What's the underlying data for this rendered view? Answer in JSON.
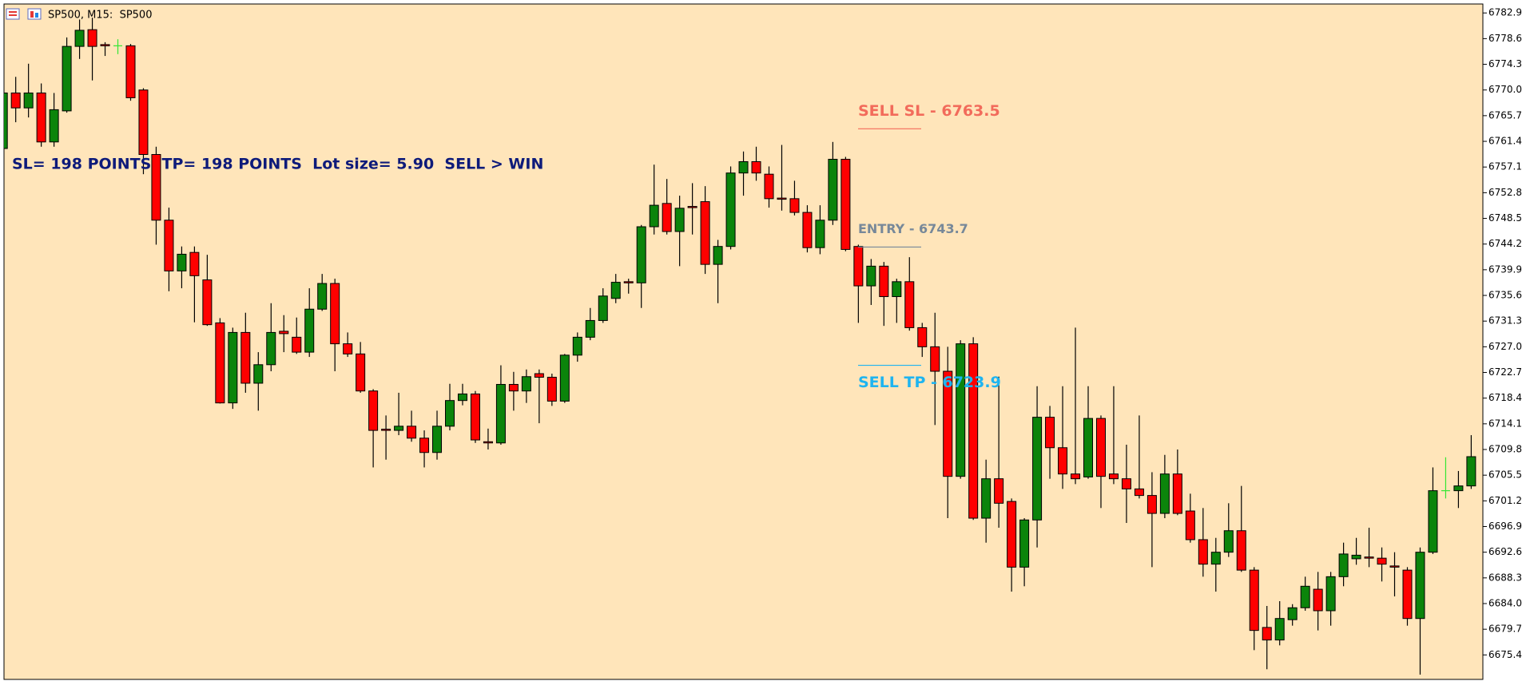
{
  "chart_data": {
    "type": "candlestick",
    "title": "SP500, M15:  SP500",
    "annotations": [
      "SL= 198 POINTS  TP= 198 POINTS  Lot size= 5.90  SELL > WIN"
    ],
    "levels": [
      {
        "label": "SELL SL - 6763.5",
        "value": 6763.5,
        "color": "#f26b5b"
      },
      {
        "label": "ENTRY - 6743.7",
        "value": 6743.7,
        "color": "#778899"
      },
      {
        "label": "SELL TP - 6723.9",
        "value": 6723.9,
        "color": "#1eb4f0"
      }
    ],
    "up_color": "#0b840b",
    "down_color": "#ff0000",
    "doji_color": "#33e633",
    "ylim": [
      6671.3,
      6784.4
    ],
    "yticks": [
      6782.9,
      6778.6,
      6774.3,
      {
        "value": 6770,
        "label": "6770.0"
      },
      6765.7,
      6761.4,
      6757.1,
      6752.8,
      6748.5,
      6744.2,
      6739.9,
      6735.6,
      6731.3,
      {
        "value": 6727,
        "label": "6727.0"
      },
      6722.7,
      6718.4,
      6714.1,
      6709.8,
      6705.5,
      6701.2,
      6696.9,
      6692.6,
      6688.3,
      {
        "value": 6684,
        "label": "6684.0"
      },
      6679.7,
      6675.4
    ],
    "open": [
      6760.2,
      6769.5,
      6767.0,
      6769.5,
      6761.3,
      6766.5,
      6777.3,
      6780.1,
      6777.6,
      6777.4,
      6777.4,
      6770.0,
      6759.2,
      6748.2,
      6739.7,
      6742.8,
      6738.2,
      6731.0,
      6717.6,
      6729.4,
      6720.9,
      6724.0,
      6729.6,
      6728.6,
      6726.1,
      6733.3,
      6737.6,
      6727.5,
      6725.8,
      6719.6,
      6713.2,
      6713.0,
      6713.7,
      6711.7,
      6709.3,
      6713.7,
      6718.0,
      6719.1,
      6711.1,
      6710.9,
      6720.7,
      6719.6,
      6722.5,
      6721.9,
      6717.9,
      6725.6,
      6728.6,
      6731.4,
      6735.1,
      6737.9,
      6737.7,
      6747.1,
      6751.0,
      6746.3,
      6750.5,
      6751.3,
      6740.8,
      6743.8,
      6756.1,
      6758.0,
      6755.9,
      6751.9,
      6751.8,
      6749.5,
      6743.6,
      6748.2,
      6758.4,
      6743.8,
      6737.2,
      6740.5,
      6735.4,
      6737.9,
      6730.2,
      6727.0,
      6722.9,
      6705.3,
      6727.5,
      6698.3,
      6704.9,
      6701.1,
      6690.1,
      6698.0,
      6715.2,
      6710.1,
      6705.7,
      6705.2,
      6715.0,
      6705.7,
      6704.9,
      6703.2,
      6702.1,
      6699.1,
      6705.7,
      6699.5,
      6694.7,
      6690.6,
      6692.6,
      6696.2,
      6689.6,
      6680.0,
      6677.9,
      6681.3,
      6683.3,
      6686.4,
      6682.8,
      6688.5,
      6691.5,
      6691.8,
      6691.6,
      6690.3,
      6689.6,
      6681.5,
      6692.6,
      6702.9,
      6702.9,
      6703.7
    ],
    "high": [
      6771.9,
      6772.2,
      6774.4,
      6771.1,
      6769.5,
      6778.8,
      6781.8,
      6782.1,
      6778.0,
      6778.5,
      6777.7,
      6770.3,
      6760.5,
      6750.3,
      6743.8,
      6743.8,
      6742.4,
      6731.8,
      6730.2,
      6732.7,
      6726.1,
      6734.3,
      6732.3,
      6731.9,
      6736.8,
      6739.2,
      6738.4,
      6729.4,
      6727.8,
      6719.9,
      6715.5,
      6719.3,
      6716.3,
      6713.0,
      6716.3,
      6720.8,
      6720.8,
      6719.6,
      6713.3,
      6723.9,
      6722.8,
      6723.2,
      6723.2,
      6722.5,
      6725.8,
      6729.4,
      6733.5,
      6736.8,
      6739.2,
      6738.4,
      6747.4,
      6757.5,
      6755.1,
      6752.3,
      6754.4,
      6753.9,
      6744.9,
      6757.2,
      6759.7,
      6760.5,
      6757.2,
      6760.8,
      6754.8,
      6750.7,
      6750.7,
      6761.3,
      6758.8,
      6744.1,
      6741.7,
      6741.2,
      6738.4,
      6742.0,
      6731.0,
      6732.7,
      6727.0,
      6728.1,
      6728.6,
      6708.1,
      6722.0,
      6701.6,
      6698.3,
      6720.4,
      6717.1,
      6720.4,
      6730.2,
      6720.4,
      6715.5,
      6720.4,
      6710.6,
      6715.5,
      6706.0,
      6708.9,
      6709.8,
      6702.4,
      6700.0,
      6695.0,
      6700.8,
      6703.7,
      6690.1,
      6683.6,
      6684.4,
      6683.9,
      6688.5,
      6689.3,
      6689.3,
      6694.2,
      6695.0,
      6696.7,
      6693.4,
      6692.6,
      6690.1,
      6693.4,
      6706.8,
      6708.5,
      6706.2,
      6712.2
    ],
    "low": [
      6759.7,
      6764.6,
      6765.4,
      6760.5,
      6760.5,
      6766.2,
      6775.2,
      6771.6,
      6775.7,
      6776.0,
      6768.2,
      6755.9,
      6744.1,
      6736.3,
      6736.8,
      6731.1,
      6730.5,
      6717.5,
      6716.6,
      6719.3,
      6716.3,
      6722.9,
      6726.1,
      6725.8,
      6725.3,
      6733.0,
      6722.9,
      6725.3,
      6719.3,
      6706.8,
      6708.1,
      6712.2,
      6711.1,
      6706.8,
      6708.1,
      6713.0,
      6717.2,
      6710.9,
      6709.8,
      6710.6,
      6716.3,
      6717.6,
      6714.2,
      6717.1,
      6717.6,
      6724.5,
      6728.1,
      6731.0,
      6734.3,
      6735.9,
      6733.5,
      6745.8,
      6745.8,
      6740.5,
      6745.8,
      6739.2,
      6734.3,
      6743.3,
      6752.3,
      6754.8,
      6750.3,
      6749.8,
      6749.0,
      6742.8,
      6742.5,
      6747.4,
      6743.0,
      6731.0,
      6734.0,
      6730.5,
      6731.0,
      6729.7,
      6725.3,
      6713.9,
      6698.3,
      6704.9,
      6698.0,
      6694.2,
      6696.7,
      6686.0,
      6686.9,
      6693.4,
      6704.9,
      6703.2,
      6704.0,
      6704.9,
      6700.0,
      6704.0,
      6697.5,
      6701.6,
      6690.1,
      6698.3,
      6698.8,
      6694.2,
      6688.5,
      6686.0,
      6691.8,
      6689.3,
      6676.2,
      6673.0,
      6677.0,
      6680.3,
      6682.8,
      6679.5,
      6680.3,
      6686.9,
      6690.5,
      6690.1,
      6687.7,
      6685.2,
      6680.3,
      6672.1,
      6692.3,
      6701.6,
      6700.0,
      6703.2
    ],
    "close": [
      6769.5,
      6767.0,
      6769.5,
      6761.3,
      6766.7,
      6777.3,
      6780.0,
      6777.3,
      6777.4,
      6777.4,
      6768.7,
      6759.2,
      6748.2,
      6739.7,
      6742.5,
      6738.9,
      6730.7,
      6717.6,
      6729.4,
      6720.9,
      6724.0,
      6729.4,
      6729.2,
      6726.1,
      6733.3,
      6737.6,
      6727.5,
      6725.8,
      6719.6,
      6713.0,
      6713.0,
      6713.7,
      6711.7,
      6709.3,
      6713.7,
      6718.0,
      6719.1,
      6711.4,
      6710.9,
      6720.7,
      6719.6,
      6722.0,
      6721.9,
      6717.9,
      6725.6,
      6728.6,
      6731.4,
      6735.5,
      6737.8,
      6737.7,
      6747.1,
      6750.7,
      6746.3,
      6750.2,
      6750.3,
      6740.8,
      6743.8,
      6756.1,
      6758.0,
      6756.1,
      6751.8,
      6751.7,
      6749.5,
      6743.6,
      6748.2,
      6758.4,
      6743.3,
      6737.2,
      6740.5,
      6735.4,
      6737.9,
      6730.2,
      6727.0,
      6722.9,
      6705.3,
      6727.5,
      6698.3,
      6704.9,
      6700.8,
      6690.1,
      6698.0,
      6715.2,
      6710.1,
      6705.7,
      6704.9,
      6715.0,
      6705.3,
      6704.9,
      6703.2,
      6702.1,
      6699.1,
      6705.7,
      6699.1,
      6694.7,
      6690.6,
      6692.6,
      6696.2,
      6689.6,
      6679.5,
      6677.9,
      6681.5,
      6683.3,
      6686.9,
      6682.8,
      6688.5,
      6692.3,
      6692.1,
      6691.6,
      6690.6,
      6690.1,
      6681.5,
      6692.6,
      6702.9,
      6702.9,
      6703.7,
      6708.6
    ]
  }
}
